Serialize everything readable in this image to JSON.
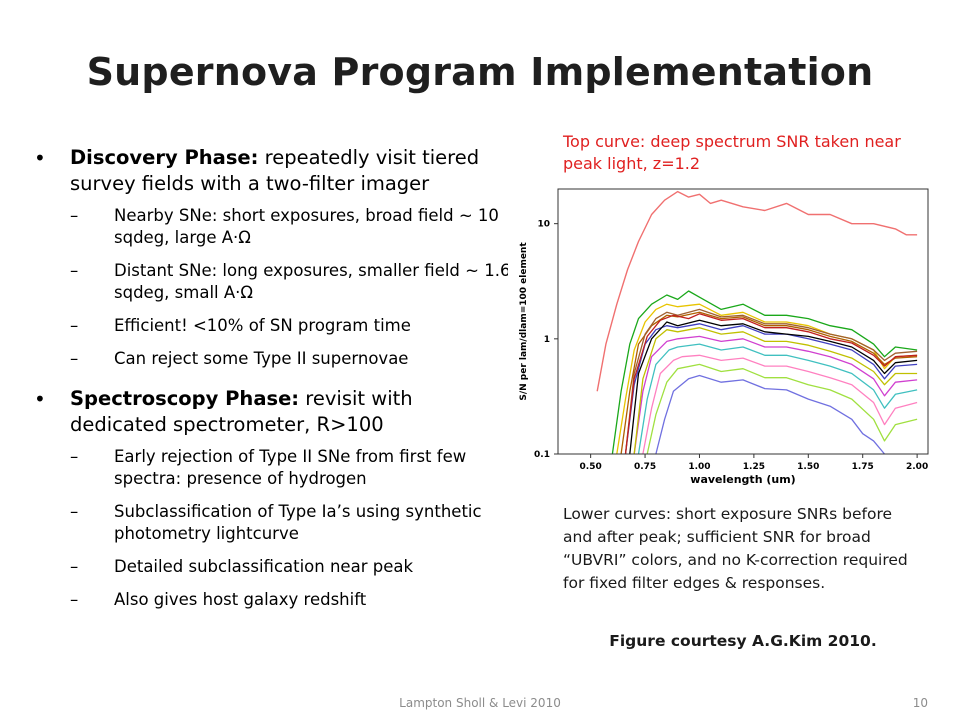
{
  "slide": {
    "title": "Supernova Program Implementation",
    "footer": "Lampton Sholl & Levi 2010",
    "page_number": "10"
  },
  "bullets": [
    {
      "lead": "Discovery Phase:",
      "text": " repeatedly visit tiered survey fields with a two-filter imager",
      "subs": [
        "Nearby SNe: short exposures, broad field ~ 10 sqdeg, large A·Ω",
        "Distant SNe: long exposures, smaller field ~ 1.6 sqdeg, small A·Ω",
        "Efficient! <10% of SN program time",
        "Can reject some Type II supernovae"
      ]
    },
    {
      "lead": "Spectroscopy Phase:",
      "text": " revisit with dedicated spectrometer, R>100",
      "subs": [
        "Early rejection of Type II SNe from first few spectra: presence of hydrogen",
        "Subclassification of Type Ia’s using synthetic photometry lightcurve",
        "Detailed subclassification near peak",
        "Also gives host galaxy redshift"
      ]
    }
  ],
  "captions": {
    "top": "Top curve: deep spectrum SNR taken near peak light, z=1.2",
    "bottom": "Lower curves: short exposure SNRs before and after peak; sufficient SNR for broad “UBVRI” colors, and no K-correction required for fixed filter edges & responses.",
    "courtesy": "Figure courtesy A.G.Kim 2010."
  },
  "chart_data": {
    "type": "line",
    "xlabel": "wavelength (um)",
    "ylabel": "S/N per lam/dlam=100 element",
    "xlim": [
      0.35,
      2.05
    ],
    "ylim": [
      0.1,
      20
    ],
    "yscale": "log",
    "xticks": [
      0.5,
      0.75,
      1.0,
      1.25,
      1.5,
      1.75,
      2.0
    ],
    "xticklabels": [
      "0.50",
      "0.75",
      "1.00",
      "1.25",
      "1.50",
      "1.75",
      "2.00"
    ],
    "yticks": [
      0.1,
      1,
      10
    ],
    "yticklabels": [
      "0.1",
      "1",
      "10"
    ],
    "grid": false,
    "series": [
      {
        "color": "#f07070",
        "points": [
          [
            0.53,
            0.35
          ],
          [
            0.57,
            0.9
          ],
          [
            0.62,
            2.0
          ],
          [
            0.67,
            4.0
          ],
          [
            0.72,
            7.0
          ],
          [
            0.78,
            12
          ],
          [
            0.84,
            16
          ],
          [
            0.9,
            19
          ],
          [
            0.95,
            17
          ],
          [
            1.0,
            18
          ],
          [
            1.05,
            15
          ],
          [
            1.1,
            16
          ],
          [
            1.2,
            14
          ],
          [
            1.3,
            13
          ],
          [
            1.4,
            15
          ],
          [
            1.5,
            12
          ],
          [
            1.6,
            12
          ],
          [
            1.7,
            10
          ],
          [
            1.8,
            10
          ],
          [
            1.9,
            9
          ],
          [
            1.95,
            8
          ],
          [
            2.0,
            8
          ]
        ]
      },
      {
        "color": "#1aa81a",
        "points": [
          [
            0.6,
            0.1
          ],
          [
            0.64,
            0.35
          ],
          [
            0.68,
            0.9
          ],
          [
            0.72,
            1.5
          ],
          [
            0.78,
            2.0
          ],
          [
            0.85,
            2.4
          ],
          [
            0.9,
            2.2
          ],
          [
            0.95,
            2.6
          ],
          [
            1.0,
            2.3
          ],
          [
            1.1,
            1.8
          ],
          [
            1.2,
            2.0
          ],
          [
            1.3,
            1.6
          ],
          [
            1.4,
            1.6
          ],
          [
            1.5,
            1.5
          ],
          [
            1.6,
            1.3
          ],
          [
            1.7,
            1.2
          ],
          [
            1.8,
            0.9
          ],
          [
            1.85,
            0.7
          ],
          [
            1.9,
            0.85
          ],
          [
            2.0,
            0.8
          ]
        ]
      },
      {
        "color": "#e8c400",
        "points": [
          [
            0.62,
            0.1
          ],
          [
            0.66,
            0.3
          ],
          [
            0.7,
            0.8
          ],
          [
            0.75,
            1.4
          ],
          [
            0.8,
            1.8
          ],
          [
            0.85,
            2.0
          ],
          [
            0.9,
            1.9
          ],
          [
            1.0,
            2.0
          ],
          [
            1.1,
            1.6
          ],
          [
            1.2,
            1.7
          ],
          [
            1.3,
            1.4
          ],
          [
            1.4,
            1.4
          ],
          [
            1.5,
            1.3
          ],
          [
            1.6,
            1.1
          ],
          [
            1.7,
            1.0
          ],
          [
            1.8,
            0.8
          ],
          [
            1.85,
            0.55
          ],
          [
            1.9,
            0.7
          ],
          [
            2.0,
            0.72
          ]
        ]
      },
      {
        "color": "#b06000",
        "points": [
          [
            0.64,
            0.1
          ],
          [
            0.68,
            0.35
          ],
          [
            0.72,
            0.9
          ],
          [
            0.78,
            1.3
          ],
          [
            0.85,
            1.6
          ],
          [
            0.9,
            1.55
          ],
          [
            1.0,
            1.7
          ],
          [
            1.1,
            1.5
          ],
          [
            1.2,
            1.55
          ],
          [
            1.3,
            1.3
          ],
          [
            1.4,
            1.3
          ],
          [
            1.5,
            1.2
          ],
          [
            1.6,
            1.05
          ],
          [
            1.7,
            0.95
          ],
          [
            1.8,
            0.75
          ],
          [
            1.85,
            0.6
          ],
          [
            1.9,
            0.68
          ],
          [
            2.0,
            0.7
          ]
        ]
      },
      {
        "color": "#4040c0",
        "points": [
          [
            0.66,
            0.1
          ],
          [
            0.7,
            0.4
          ],
          [
            0.75,
            0.9
          ],
          [
            0.8,
            1.2
          ],
          [
            0.85,
            1.3
          ],
          [
            0.9,
            1.25
          ],
          [
            1.0,
            1.35
          ],
          [
            1.1,
            1.2
          ],
          [
            1.2,
            1.3
          ],
          [
            1.3,
            1.1
          ],
          [
            1.4,
            1.1
          ],
          [
            1.5,
            1.0
          ],
          [
            1.6,
            0.9
          ],
          [
            1.7,
            0.8
          ],
          [
            1.8,
            0.6
          ],
          [
            1.85,
            0.45
          ],
          [
            1.9,
            0.58
          ],
          [
            2.0,
            0.6
          ]
        ]
      },
      {
        "color": "#d040d0",
        "points": [
          [
            0.7,
            0.1
          ],
          [
            0.74,
            0.35
          ],
          [
            0.78,
            0.7
          ],
          [
            0.85,
            0.95
          ],
          [
            0.9,
            1.0
          ],
          [
            1.0,
            1.05
          ],
          [
            1.1,
            0.95
          ],
          [
            1.2,
            1.0
          ],
          [
            1.3,
            0.85
          ],
          [
            1.4,
            0.85
          ],
          [
            1.5,
            0.78
          ],
          [
            1.6,
            0.7
          ],
          [
            1.7,
            0.6
          ],
          [
            1.8,
            0.45
          ],
          [
            1.85,
            0.32
          ],
          [
            1.9,
            0.42
          ],
          [
            2.0,
            0.44
          ]
        ]
      },
      {
        "color": "#40c0c0",
        "points": [
          [
            0.72,
            0.1
          ],
          [
            0.76,
            0.3
          ],
          [
            0.8,
            0.6
          ],
          [
            0.86,
            0.8
          ],
          [
            0.9,
            0.85
          ],
          [
            1.0,
            0.9
          ],
          [
            1.1,
            0.8
          ],
          [
            1.2,
            0.85
          ],
          [
            1.3,
            0.72
          ],
          [
            1.4,
            0.72
          ],
          [
            1.5,
            0.65
          ],
          [
            1.6,
            0.58
          ],
          [
            1.7,
            0.5
          ],
          [
            1.8,
            0.36
          ],
          [
            1.85,
            0.25
          ],
          [
            1.9,
            0.33
          ],
          [
            2.0,
            0.36
          ]
        ]
      },
      {
        "color": "#ff80c0",
        "points": [
          [
            0.74,
            0.1
          ],
          [
            0.78,
            0.25
          ],
          [
            0.82,
            0.5
          ],
          [
            0.88,
            0.65
          ],
          [
            0.92,
            0.7
          ],
          [
            1.0,
            0.72
          ],
          [
            1.1,
            0.65
          ],
          [
            1.2,
            0.68
          ],
          [
            1.3,
            0.58
          ],
          [
            1.4,
            0.58
          ],
          [
            1.5,
            0.52
          ],
          [
            1.6,
            0.46
          ],
          [
            1.7,
            0.4
          ],
          [
            1.8,
            0.28
          ],
          [
            1.85,
            0.18
          ],
          [
            1.9,
            0.25
          ],
          [
            2.0,
            0.28
          ]
        ]
      },
      {
        "color": "#a0e040",
        "points": [
          [
            0.76,
            0.1
          ],
          [
            0.8,
            0.22
          ],
          [
            0.85,
            0.42
          ],
          [
            0.9,
            0.55
          ],
          [
            1.0,
            0.6
          ],
          [
            1.1,
            0.52
          ],
          [
            1.2,
            0.55
          ],
          [
            1.3,
            0.46
          ],
          [
            1.4,
            0.46
          ],
          [
            1.5,
            0.4
          ],
          [
            1.6,
            0.36
          ],
          [
            1.7,
            0.3
          ],
          [
            1.8,
            0.2
          ],
          [
            1.85,
            0.13
          ],
          [
            1.9,
            0.18
          ],
          [
            2.0,
            0.2
          ]
        ]
      },
      {
        "color": "#7070e0",
        "points": [
          [
            0.8,
            0.1
          ],
          [
            0.84,
            0.2
          ],
          [
            0.88,
            0.35
          ],
          [
            0.95,
            0.45
          ],
          [
            1.0,
            0.48
          ],
          [
            1.1,
            0.42
          ],
          [
            1.2,
            0.44
          ],
          [
            1.3,
            0.37
          ],
          [
            1.4,
            0.36
          ],
          [
            1.5,
            0.3
          ],
          [
            1.6,
            0.26
          ],
          [
            1.7,
            0.2
          ],
          [
            1.75,
            0.15
          ],
          [
            1.8,
            0.13
          ],
          [
            1.85,
            0.1
          ]
        ]
      },
      {
        "color": "#a06030",
        "points": [
          [
            0.66,
            0.1
          ],
          [
            0.7,
            0.5
          ],
          [
            0.75,
            1.1
          ],
          [
            0.8,
            1.5
          ],
          [
            0.85,
            1.7
          ],
          [
            0.9,
            1.6
          ],
          [
            1.0,
            1.8
          ],
          [
            1.1,
            1.55
          ],
          [
            1.2,
            1.6
          ],
          [
            1.3,
            1.35
          ],
          [
            1.4,
            1.35
          ],
          [
            1.5,
            1.25
          ],
          [
            1.6,
            1.1
          ],
          [
            1.7,
            1.0
          ],
          [
            1.8,
            0.8
          ],
          [
            1.85,
            0.65
          ],
          [
            1.9,
            0.75
          ],
          [
            2.0,
            0.78
          ]
        ]
      },
      {
        "color": "#c0c000",
        "points": [
          [
            0.7,
            0.1
          ],
          [
            0.74,
            0.45
          ],
          [
            0.8,
            1.0
          ],
          [
            0.85,
            1.2
          ],
          [
            0.9,
            1.15
          ],
          [
            1.0,
            1.25
          ],
          [
            1.1,
            1.1
          ],
          [
            1.2,
            1.15
          ],
          [
            1.3,
            0.95
          ],
          [
            1.4,
            0.95
          ],
          [
            1.5,
            0.88
          ],
          [
            1.6,
            0.78
          ],
          [
            1.7,
            0.68
          ],
          [
            1.8,
            0.52
          ],
          [
            1.85,
            0.4
          ],
          [
            1.9,
            0.5
          ],
          [
            2.0,
            0.5
          ]
        ]
      },
      {
        "color": "#000000",
        "points": [
          [
            0.68,
            0.1
          ],
          [
            0.72,
            0.5
          ],
          [
            0.78,
            1.0
          ],
          [
            0.85,
            1.4
          ],
          [
            0.9,
            1.3
          ],
          [
            1.0,
            1.45
          ],
          [
            1.1,
            1.3
          ],
          [
            1.2,
            1.35
          ],
          [
            1.3,
            1.15
          ],
          [
            1.4,
            1.1
          ],
          [
            1.5,
            1.05
          ],
          [
            1.6,
            0.95
          ],
          [
            1.7,
            0.85
          ],
          [
            1.8,
            0.65
          ],
          [
            1.85,
            0.5
          ],
          [
            1.9,
            0.62
          ],
          [
            2.0,
            0.65
          ]
        ]
      },
      {
        "color": "#c02020",
        "points": [
          [
            0.66,
            0.1
          ],
          [
            0.7,
            0.45
          ],
          [
            0.76,
            1.05
          ],
          [
            0.82,
            1.45
          ],
          [
            0.88,
            1.6
          ],
          [
            0.95,
            1.5
          ],
          [
            1.0,
            1.65
          ],
          [
            1.1,
            1.45
          ],
          [
            1.2,
            1.5
          ],
          [
            1.3,
            1.25
          ],
          [
            1.4,
            1.25
          ],
          [
            1.5,
            1.15
          ],
          [
            1.6,
            1.0
          ],
          [
            1.7,
            0.92
          ],
          [
            1.8,
            0.72
          ],
          [
            1.85,
            0.58
          ],
          [
            1.9,
            0.7
          ],
          [
            2.0,
            0.72
          ]
        ]
      }
    ]
  }
}
